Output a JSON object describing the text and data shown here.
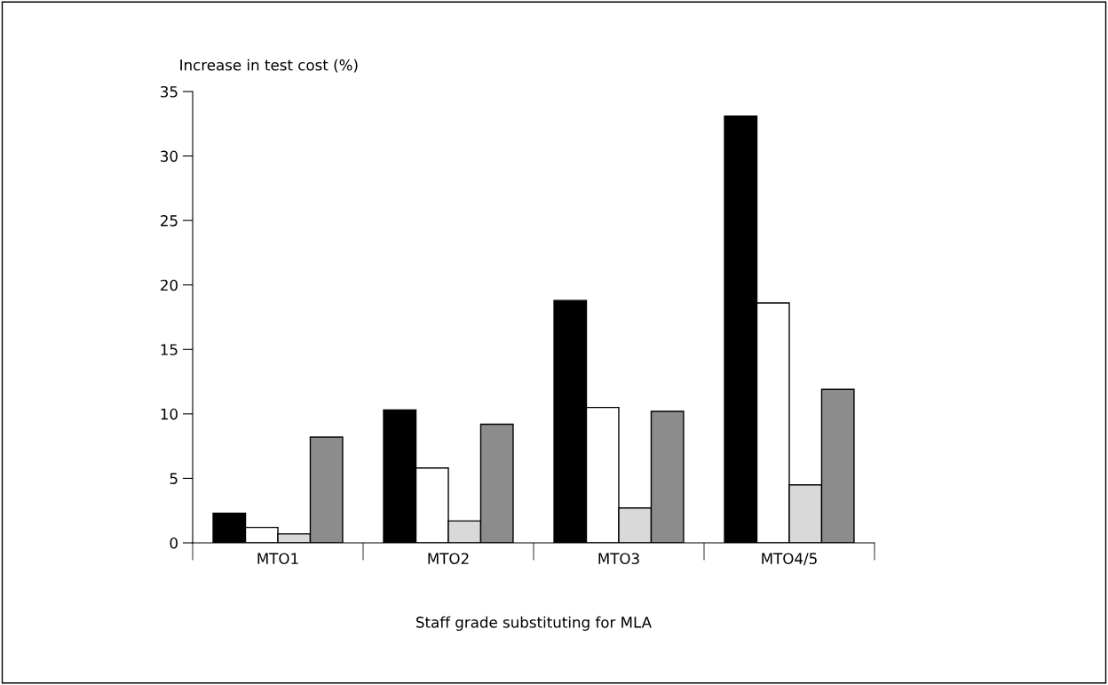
{
  "chart_data": {
    "type": "bar",
    "xlabel": "Staff grade substituting for MLA",
    "ylabel": "Increase in test cost (%)",
    "categories": [
      "MTO1",
      "MTO2",
      "MTO3",
      "MTO4/5"
    ],
    "series": [
      {
        "color": "#000000",
        "values": [
          2.3,
          10.3,
          18.8,
          33.1
        ]
      },
      {
        "color": "#ffffff",
        "values": [
          1.2,
          5.8,
          10.5,
          18.6
        ]
      },
      {
        "color": "#d9d9d9",
        "values": [
          0.7,
          1.7,
          2.7,
          4.5
        ]
      },
      {
        "color": "#8c8c8c",
        "values": [
          8.2,
          9.2,
          10.2,
          11.9
        ]
      }
    ],
    "ylim": [
      0,
      35
    ],
    "yticks": [
      0,
      5,
      10,
      15,
      20,
      25,
      30,
      35
    ],
    "grid": false,
    "legend": false
  }
}
